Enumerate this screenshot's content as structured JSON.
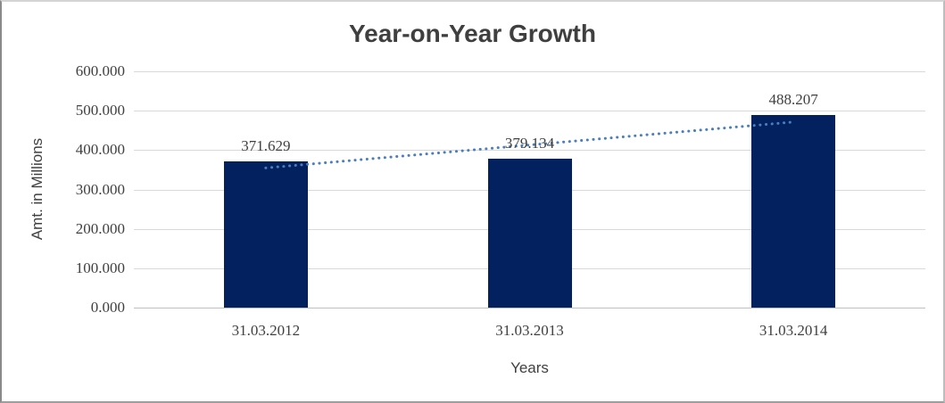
{
  "chart_data": {
    "type": "bar",
    "title": "Year-on-Year Growth",
    "xlabel": "Years",
    "ylabel": "Amt. in Millions",
    "categories": [
      "31.03.2012",
      "31.03.2013",
      "31.03.2014"
    ],
    "values": [
      371.629,
      379.134,
      488.207
    ],
    "data_labels": [
      "371.629",
      "379.134",
      "488.207"
    ],
    "ylim": [
      0,
      600
    ],
    "yticks": [
      {
        "value": 0,
        "label": "0.000"
      },
      {
        "value": 100,
        "label": "100.000"
      },
      {
        "value": 200,
        "label": "200.000"
      },
      {
        "value": 300,
        "label": "300.000"
      },
      {
        "value": 400,
        "label": "400.000"
      },
      {
        "value": 500,
        "label": "500.000"
      },
      {
        "value": 600,
        "label": "600.000"
      }
    ],
    "grid": "horizontal",
    "legend": "none",
    "trendline": {
      "type": "linear",
      "style": "dotted"
    },
    "colors": {
      "bar_fill": "#02215E",
      "trendline": "#4A7EBD",
      "gridline": "#D9D9D9",
      "axis_line": "#BFBFBF",
      "text": "#404040",
      "title_text": "#3F3F3F"
    }
  }
}
